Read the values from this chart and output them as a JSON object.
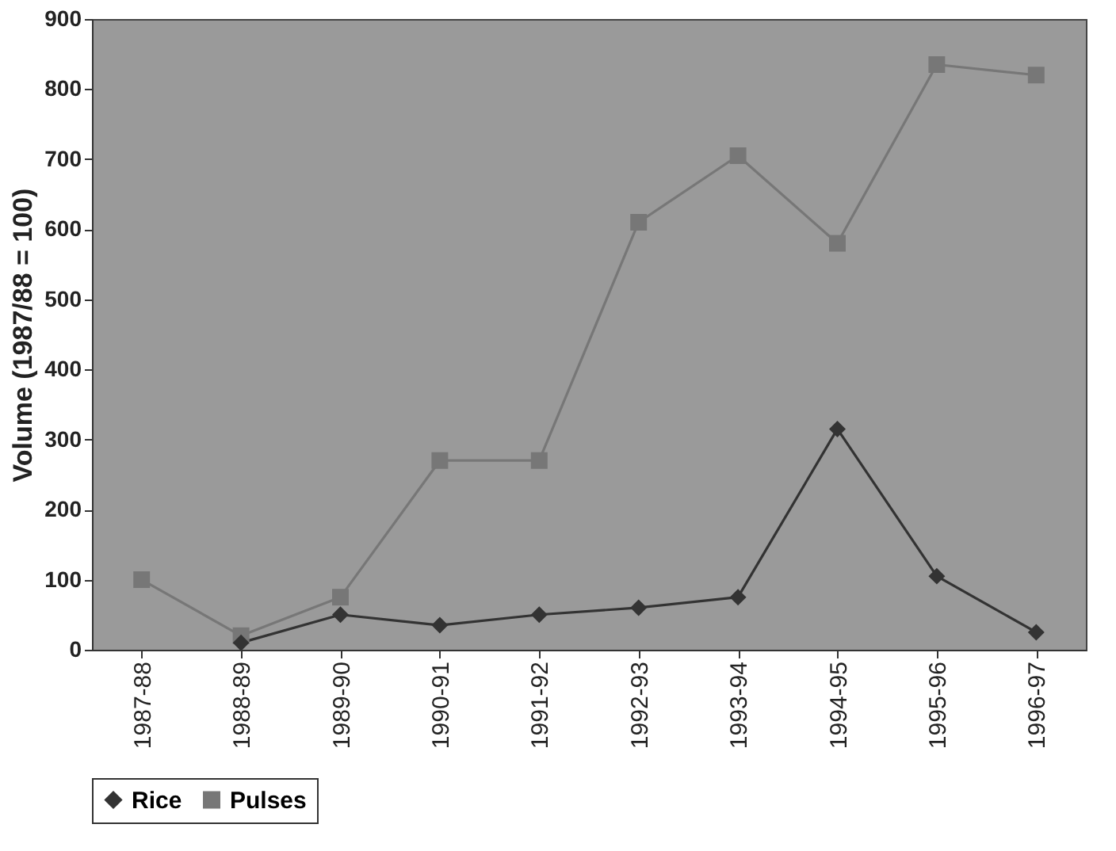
{
  "chart_data": {
    "type": "line",
    "ylabel": "Volume (1987/88 = 100)",
    "categories": [
      "1987-88",
      "1988-89",
      "1989-90",
      "1990-91",
      "1991-92",
      "1992-93",
      "1993-94",
      "1994-95",
      "1995-96",
      "1996-97"
    ],
    "series": [
      {
        "name": "Rice",
        "color": "#333333",
        "marker": "diamond",
        "values": [
          null,
          10,
          50,
          35,
          50,
          60,
          75,
          315,
          105,
          25
        ]
      },
      {
        "name": "Pulses",
        "color": "#777777",
        "marker": "square",
        "values": [
          100,
          20,
          75,
          270,
          270,
          610,
          705,
          580,
          835,
          820
        ]
      }
    ],
    "ylim": [
      0,
      900
    ],
    "yticks": [
      0,
      100,
      200,
      300,
      400,
      500,
      600,
      700,
      800,
      900
    ],
    "grid": false,
    "legend": "bottom",
    "line_style": "solid"
  }
}
